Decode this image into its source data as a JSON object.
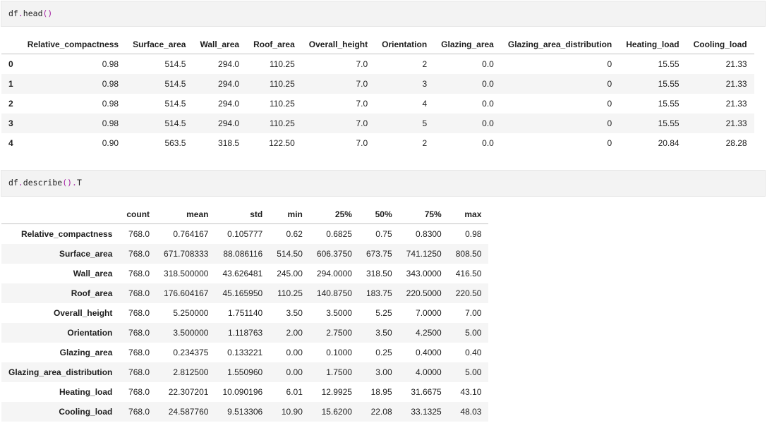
{
  "colors": {
    "code_cell_bg": "#f3f3f3",
    "code_cell_border": "#e7e7e7",
    "code_punctuation": "#a626a4",
    "table_stripe": "#f5f5f5",
    "header_border": "#c3c3c3",
    "text": "#1e1e1e"
  },
  "cell1": {
    "source": "df.head()"
  },
  "head_table": {
    "index_label": "",
    "columns": [
      "Relative_compactness",
      "Surface_area",
      "Wall_area",
      "Roof_area",
      "Overall_height",
      "Orientation",
      "Glazing_area",
      "Glazing_area_distribution",
      "Heating_load",
      "Cooling_load"
    ],
    "rows": [
      {
        "index": "0",
        "values": [
          "0.98",
          "514.5",
          "294.0",
          "110.25",
          "7.0",
          "2",
          "0.0",
          "0",
          "15.55",
          "21.33"
        ]
      },
      {
        "index": "1",
        "values": [
          "0.98",
          "514.5",
          "294.0",
          "110.25",
          "7.0",
          "3",
          "0.0",
          "0",
          "15.55",
          "21.33"
        ]
      },
      {
        "index": "2",
        "values": [
          "0.98",
          "514.5",
          "294.0",
          "110.25",
          "7.0",
          "4",
          "0.0",
          "0",
          "15.55",
          "21.33"
        ]
      },
      {
        "index": "3",
        "values": [
          "0.98",
          "514.5",
          "294.0",
          "110.25",
          "7.0",
          "5",
          "0.0",
          "0",
          "15.55",
          "21.33"
        ]
      },
      {
        "index": "4",
        "values": [
          "0.90",
          "563.5",
          "318.5",
          "122.50",
          "7.0",
          "2",
          "0.0",
          "0",
          "20.84",
          "28.28"
        ]
      }
    ]
  },
  "cell2": {
    "source": "df.describe().T"
  },
  "describe_table": {
    "index_label": "",
    "columns": [
      "count",
      "mean",
      "std",
      "min",
      "25%",
      "50%",
      "75%",
      "max"
    ],
    "rows": [
      {
        "index": "Relative_compactness",
        "values": [
          "768.0",
          "0.764167",
          "0.105777",
          "0.62",
          "0.6825",
          "0.75",
          "0.8300",
          "0.98"
        ]
      },
      {
        "index": "Surface_area",
        "values": [
          "768.0",
          "671.708333",
          "88.086116",
          "514.50",
          "606.3750",
          "673.75",
          "741.1250",
          "808.50"
        ]
      },
      {
        "index": "Wall_area",
        "values": [
          "768.0",
          "318.500000",
          "43.626481",
          "245.00",
          "294.0000",
          "318.50",
          "343.0000",
          "416.50"
        ]
      },
      {
        "index": "Roof_area",
        "values": [
          "768.0",
          "176.604167",
          "45.165950",
          "110.25",
          "140.8750",
          "183.75",
          "220.5000",
          "220.50"
        ]
      },
      {
        "index": "Overall_height",
        "values": [
          "768.0",
          "5.250000",
          "1.751140",
          "3.50",
          "3.5000",
          "5.25",
          "7.0000",
          "7.00"
        ]
      },
      {
        "index": "Orientation",
        "values": [
          "768.0",
          "3.500000",
          "1.118763",
          "2.00",
          "2.7500",
          "3.50",
          "4.2500",
          "5.00"
        ]
      },
      {
        "index": "Glazing_area",
        "values": [
          "768.0",
          "0.234375",
          "0.133221",
          "0.00",
          "0.1000",
          "0.25",
          "0.4000",
          "0.40"
        ]
      },
      {
        "index": "Glazing_area_distribution",
        "values": [
          "768.0",
          "2.812500",
          "1.550960",
          "0.00",
          "1.7500",
          "3.00",
          "4.0000",
          "5.00"
        ]
      },
      {
        "index": "Heating_load",
        "values": [
          "768.0",
          "22.307201",
          "10.090196",
          "6.01",
          "12.9925",
          "18.95",
          "31.6675",
          "43.10"
        ]
      },
      {
        "index": "Cooling_load",
        "values": [
          "768.0",
          "24.587760",
          "9.513306",
          "10.90",
          "15.6200",
          "22.08",
          "33.1325",
          "48.03"
        ]
      }
    ]
  }
}
